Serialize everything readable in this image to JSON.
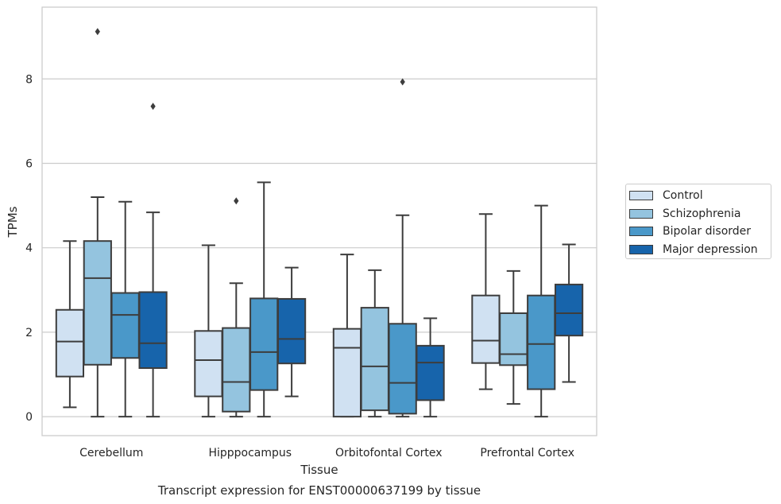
{
  "chart_data": {
    "type": "box",
    "title": "",
    "caption": "Transcript expression for ENST00000637199 by tissue",
    "xlabel": "Tissue",
    "ylabel": "TPMs",
    "ylim": [
      -0.45,
      9.7
    ],
    "yticks": [
      0,
      2,
      4,
      6,
      8
    ],
    "grid": "horizontal",
    "legend_position": "right",
    "categories": [
      "Cerebellum",
      "Hipppocampus",
      "Orbitofontal Cortex",
      "Prefrontal Cortex"
    ],
    "series": [
      {
        "name": "Control",
        "color": "#d0e1f2",
        "boxes": [
          {
            "whislo": 0.22,
            "q1": 0.95,
            "med": 1.78,
            "q3": 2.53,
            "whishi": 4.16,
            "fliers": []
          },
          {
            "whislo": 0.0,
            "q1": 0.48,
            "med": 1.34,
            "q3": 2.03,
            "whishi": 4.06,
            "fliers": []
          },
          {
            "whislo": 0.0,
            "q1": 0.0,
            "med": 1.63,
            "q3": 2.08,
            "whishi": 3.84,
            "fliers": []
          },
          {
            "whislo": 0.65,
            "q1": 1.27,
            "med": 1.8,
            "q3": 2.87,
            "whishi": 4.8,
            "fliers": []
          }
        ]
      },
      {
        "name": "Schizophrenia",
        "color": "#94c4df",
        "boxes": [
          {
            "whislo": 0.0,
            "q1": 1.23,
            "med": 3.28,
            "q3": 4.16,
            "whishi": 5.2,
            "fliers": [
              9.12
            ]
          },
          {
            "whislo": 0.0,
            "q1": 0.12,
            "med": 0.82,
            "q3": 2.1,
            "whishi": 3.16,
            "fliers": [
              5.11
            ]
          },
          {
            "whislo": 0.0,
            "q1": 0.15,
            "med": 1.19,
            "q3": 2.58,
            "whishi": 3.47,
            "fliers": []
          },
          {
            "whislo": 0.3,
            "q1": 1.22,
            "med": 1.48,
            "q3": 2.45,
            "whishi": 3.45,
            "fliers": []
          }
        ]
      },
      {
        "name": "Bipolar disorder",
        "color": "#4a98c9",
        "boxes": [
          {
            "whislo": 0.0,
            "q1": 1.39,
            "med": 2.41,
            "q3": 2.93,
            "whishi": 5.09,
            "fliers": []
          },
          {
            "whislo": 0.0,
            "q1": 0.63,
            "med": 1.53,
            "q3": 2.8,
            "whishi": 5.55,
            "fliers": []
          },
          {
            "whislo": 0.0,
            "q1": 0.07,
            "med": 0.8,
            "q3": 2.2,
            "whishi": 4.77,
            "fliers": [
              7.93
            ]
          },
          {
            "whislo": 0.0,
            "q1": 0.65,
            "med": 1.72,
            "q3": 2.87,
            "whishi": 5.0,
            "fliers": []
          }
        ]
      },
      {
        "name": "Major depression",
        "color": "#1764ab",
        "boxes": [
          {
            "whislo": 0.0,
            "q1": 1.15,
            "med": 1.74,
            "q3": 2.95,
            "whishi": 4.84,
            "fliers": [
              7.35
            ]
          },
          {
            "whislo": 0.48,
            "q1": 1.26,
            "med": 1.84,
            "q3": 2.79,
            "whishi": 3.53,
            "fliers": []
          },
          {
            "whislo": 0.0,
            "q1": 0.39,
            "med": 1.28,
            "q3": 1.68,
            "whishi": 2.33,
            "fliers": []
          },
          {
            "whislo": 0.82,
            "q1": 1.92,
            "med": 2.45,
            "q3": 3.13,
            "whishi": 4.08,
            "fliers": []
          }
        ]
      }
    ]
  }
}
